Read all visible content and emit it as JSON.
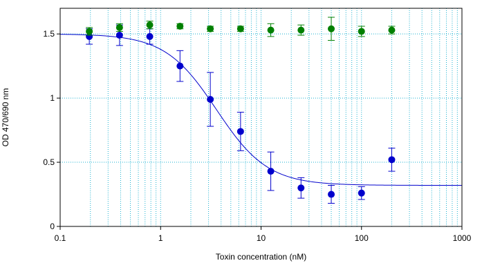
{
  "chart_data": {
    "type": "scatter",
    "title": "",
    "xlabel": "Toxin concentration (nM)",
    "ylabel": "OD 470/690 nm",
    "x_scale": "log",
    "xlim": [
      0.1,
      1000
    ],
    "ylim": [
      0,
      1.7
    ],
    "grid": true,
    "legend": "none",
    "x_ticks": [
      {
        "value": 0.1,
        "label": "0.1"
      },
      {
        "value": 1,
        "label": "1"
      },
      {
        "value": 10,
        "label": "10"
      },
      {
        "value": 100,
        "label": "100"
      },
      {
        "value": 1000,
        "label": "1000"
      }
    ],
    "y_ticks": [
      {
        "value": 0,
        "label": "0"
      },
      {
        "value": 0.5,
        "label": "0.5"
      },
      {
        "value": 1,
        "label": "1"
      },
      {
        "value": 1.5,
        "label": "1.5"
      }
    ],
    "series": [
      {
        "color": "#0000cc",
        "x": [
          0.195,
          0.39,
          0.78,
          1.56,
          3.125,
          6.25,
          12.5,
          25,
          50,
          100,
          200
        ],
        "y": [
          1.48,
          1.49,
          1.48,
          1.25,
          0.99,
          0.74,
          0.43,
          0.3,
          0.25,
          0.26,
          0.52
        ],
        "err": [
          0.06,
          0.08,
          0.06,
          0.12,
          0.21,
          0.15,
          0.15,
          0.08,
          0.07,
          0.05,
          0.09
        ]
      },
      {
        "color": "#008000",
        "x": [
          0.195,
          0.39,
          0.78,
          1.56,
          3.125,
          6.25,
          12.5,
          25,
          50,
          100,
          200
        ],
        "y": [
          1.52,
          1.55,
          1.57,
          1.56,
          1.54,
          1.54,
          1.53,
          1.53,
          1.54,
          1.52,
          1.53
        ],
        "err": [
          0.03,
          0.03,
          0.03,
          0.02,
          0.02,
          0.02,
          0.05,
          0.04,
          0.09,
          0.04,
          0.03
        ]
      }
    ],
    "fit_curve": {
      "color": "#0000cc",
      "top": 1.5,
      "bottom": 0.32,
      "ec50": 3.6,
      "hill": 1.7
    },
    "grid_color": "#1ab0d0"
  }
}
